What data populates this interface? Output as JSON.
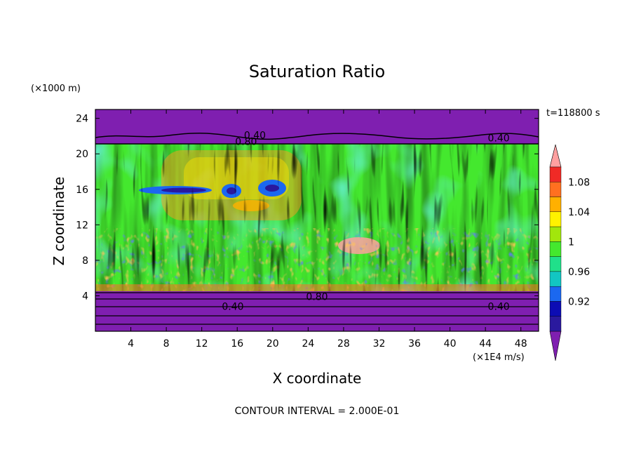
{
  "chart_data": {
    "type": "heatmap",
    "title": "Saturation Ratio",
    "xlabel": "X coordinate",
    "ylabel": "Z coordinate",
    "x_unit": "(×1E4 m/s)",
    "y_unit": "(×1000 m)",
    "time_label": "t=118800 s",
    "footnote": "CONTOUR INTERVAL = 2.000E-01",
    "xlim": [
      0,
      50
    ],
    "ylim": [
      0,
      25
    ],
    "x_ticks": [
      4,
      8,
      12,
      16,
      20,
      24,
      28,
      32,
      36,
      40,
      44,
      48
    ],
    "y_ticks": [
      4,
      8,
      12,
      16,
      20,
      24
    ],
    "colorbar": {
      "labels": [
        "0.92",
        "0.96",
        "1",
        "1.04",
        "1.08"
      ],
      "colors": [
        "#7f1fb0",
        "#2a199e",
        "#0c0cb4",
        "#1b68f0",
        "#12c6c2",
        "#20e08a",
        "#44e82e",
        "#a2e60c",
        "#fff200",
        "#ffb000",
        "#ff7020",
        "#f02a26",
        "#ffa0a0"
      ],
      "extend": "both"
    },
    "contour_labels": [
      {
        "text": "0.40",
        "x": 18,
        "y": 22.1
      },
      {
        "text": "0.80",
        "x": 17,
        "y": 21.4
      },
      {
        "text": "0.40",
        "x": 45.5,
        "y": 21.8
      },
      {
        "text": "0.80",
        "x": 25,
        "y": 3.9
      },
      {
        "text": "0.40",
        "x": 15.5,
        "y": 2.8
      },
      {
        "text": "0.40",
        "x": 45.5,
        "y": 2.8
      }
    ],
    "regions": [
      {
        "desc": "dry layer above about 21 km",
        "z_range": [
          21,
          25
        ],
        "value": "<0.40"
      },
      {
        "desc": "near-saturated layer",
        "z_range": [
          4.5,
          21
        ],
        "value": "0.96-1.08"
      },
      {
        "desc": "dry layer below about 4.5 km",
        "z_range": [
          0,
          4.5
        ],
        "value": "<0.40"
      }
    ]
  }
}
